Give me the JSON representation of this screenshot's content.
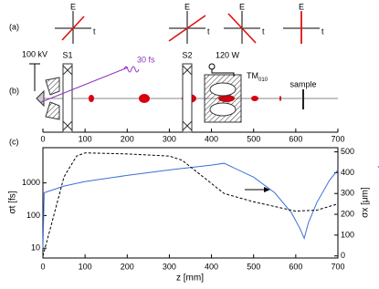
{
  "diagram": {
    "panel_a": {
      "label": "(a)",
      "E": "E",
      "t": "t"
    },
    "panel_b": {
      "label": "(b)",
      "voltage": "100 kV",
      "s1": "S1",
      "pulse": "30 fs",
      "s2": "S2",
      "power": "120 W",
      "cavity": "TM",
      "cavity_sub": "010",
      "sample": "sample"
    }
  },
  "chart_data": {
    "type": "line",
    "panel_label": "(c)",
    "xlabel": "z [mm]",
    "ylabel": "σt [fs]",
    "y2label": "σx [μm]",
    "xlim": [
      0,
      700
    ],
    "xticks": [
      0,
      100,
      200,
      300,
      400,
      500,
      600,
      700
    ],
    "ylim": [
      5,
      12000
    ],
    "ylog": true,
    "yticks": [
      10,
      100,
      1000
    ],
    "y2lim": [
      -10,
      520
    ],
    "y2ticks": [
      0,
      100,
      200,
      300,
      400,
      500
    ],
    "series": [
      {
        "color": "#3a6fd8",
        "dash": false,
        "axis": "y",
        "x": [
          0,
          3,
          50,
          100,
          200,
          300,
          400,
          430,
          500,
          550,
          590,
          610,
          620,
          630,
          650,
          680,
          700
        ],
        "values": [
          10,
          500,
          800,
          1100,
          1700,
          2500,
          3500,
          4000,
          1500,
          500,
          120,
          40,
          20,
          60,
          250,
          1200,
          2500
        ]
      },
      {
        "color": "#000000",
        "dash": true,
        "axis": "y2",
        "x": [
          0,
          20,
          50,
          80,
          100,
          200,
          300,
          330,
          380,
          430,
          500,
          600,
          650,
          700
        ],
        "values": [
          0,
          150,
          380,
          480,
          495,
          490,
          480,
          460,
          380,
          300,
          260,
          215,
          220,
          250
        ]
      }
    ]
  }
}
